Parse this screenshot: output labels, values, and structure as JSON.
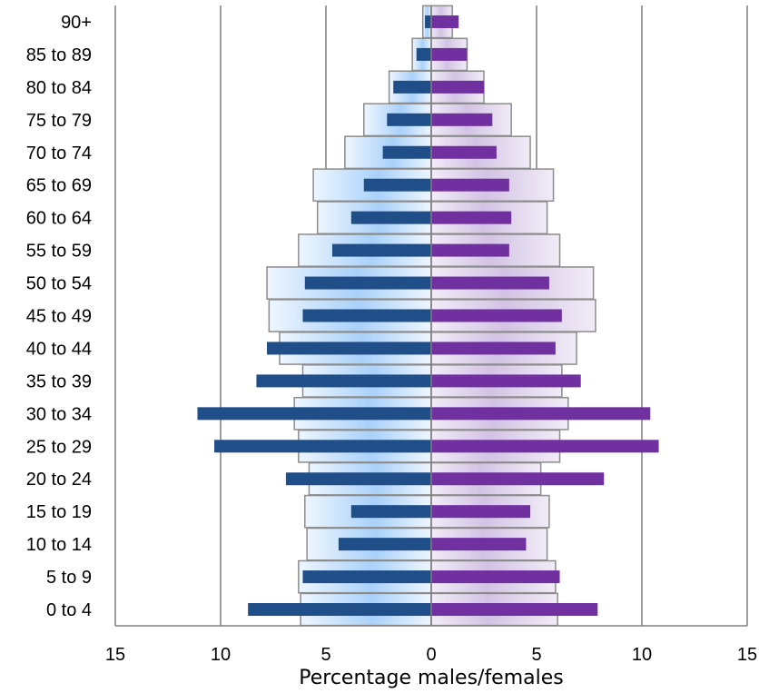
{
  "chart_data": {
    "type": "bar",
    "orientation": "horizontal",
    "layout": "population-pyramid",
    "xlabel": "Percentage males/females",
    "xlim": [
      -15,
      15
    ],
    "xticks": [
      -15,
      -10,
      -5,
      0,
      5,
      10,
      15
    ],
    "xtick_labels": [
      "15",
      "10",
      "5",
      "0",
      "5",
      "10",
      "15"
    ],
    "grid": true,
    "legend": "none",
    "categories": [
      "0 to 4",
      "5 to 9",
      "10 to 14",
      "15 to 19",
      "20 to 24",
      "25 to 29",
      "30 to 34",
      "35 to 39",
      "40 to 44",
      "45 to 49",
      "50 to 54",
      "55 to 59",
      "60 to 64",
      "65 to 69",
      "70 to 74",
      "75 to 79",
      "80 to 84",
      "85 to 89",
      "90+"
    ],
    "series": [
      {
        "role": "reference-males",
        "color": "#a8cdf5",
        "values": [
          6.2,
          6.3,
          5.9,
          6.0,
          5.8,
          6.3,
          6.5,
          6.1,
          7.2,
          7.7,
          7.8,
          6.3,
          5.4,
          5.6,
          4.1,
          3.2,
          2.0,
          0.9,
          0.4
        ]
      },
      {
        "role": "reference-females",
        "color": "#d5c6e6",
        "values": [
          6.0,
          5.9,
          5.5,
          5.6,
          5.2,
          6.1,
          6.5,
          6.2,
          6.9,
          7.8,
          7.7,
          6.1,
          5.5,
          5.8,
          4.7,
          3.8,
          2.5,
          1.7,
          1.0
        ]
      },
      {
        "role": "males",
        "color": "#1f4e89",
        "values": [
          8.7,
          6.1,
          4.4,
          3.8,
          6.9,
          10.3,
          11.1,
          8.3,
          7.8,
          6.1,
          6.0,
          4.7,
          3.8,
          3.2,
          2.3,
          2.1,
          1.8,
          0.7,
          0.3
        ]
      },
      {
        "role": "females",
        "color": "#7030a0",
        "values": [
          7.9,
          6.1,
          4.5,
          4.7,
          8.2,
          10.8,
          10.4,
          7.1,
          5.9,
          6.2,
          5.6,
          3.7,
          3.8,
          3.7,
          3.1,
          2.9,
          2.5,
          1.7,
          1.3
        ]
      }
    ]
  }
}
